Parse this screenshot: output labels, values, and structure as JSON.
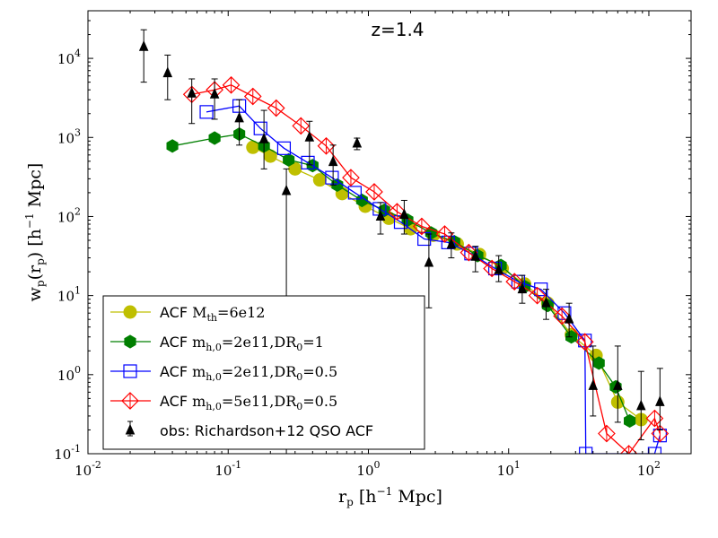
{
  "chart_data": {
    "type": "scatter",
    "title": "z=1.4",
    "xlabel": "r_p [h^-1 Mpc]",
    "ylabel": "w_p(r_p) [h^-1 Mpc]",
    "xscale": "log",
    "yscale": "log",
    "xlim": [
      0.01,
      200
    ],
    "ylim": [
      0.1,
      40000
    ],
    "x_ticks": [
      {
        "value": 0.01,
        "base": "10",
        "exp": "-2"
      },
      {
        "value": 0.1,
        "base": "10",
        "exp": "-1"
      },
      {
        "value": 1,
        "base": "10",
        "exp": "0"
      },
      {
        "value": 10,
        "base": "10",
        "exp": "1"
      },
      {
        "value": 100,
        "base": "10",
        "exp": "2"
      }
    ],
    "y_ticks": [
      {
        "value": 0.1,
        "base": "10",
        "exp": "-1"
      },
      {
        "value": 1,
        "base": "10",
        "exp": "0"
      },
      {
        "value": 10,
        "base": "10",
        "exp": "1"
      },
      {
        "value": 100,
        "base": "10",
        "exp": "2"
      },
      {
        "value": 1000,
        "base": "10",
        "exp": "3"
      },
      {
        "value": 10000,
        "base": "10",
        "exp": "4"
      }
    ],
    "legend_position": "lower-left",
    "series": [
      {
        "name": "ACF M_th=6e12",
        "legend": {
          "prefix": "ACF ",
          "math": "M",
          "sub": "th",
          "rest": "=6e12"
        },
        "color": "#bfbf00",
        "marker": "circle",
        "x": [
          0.15,
          0.2,
          0.3,
          0.45,
          0.65,
          0.95,
          1.4,
          2.0,
          2.9,
          4.3,
          6.2,
          9.0,
          13,
          19,
          28,
          42,
          60,
          88
        ],
        "y": [
          750,
          580,
          400,
          290,
          195,
          135,
          95,
          70,
          58,
          45,
          33,
          22,
          14,
          8,
          3.2,
          1.75,
          0.45,
          0.27
        ]
      },
      {
        "name": "ACF m_h,0=2e11,DR_0=1",
        "legend": {
          "prefix": "ACF ",
          "math": "m",
          "sub": "h,0",
          "rest": "=2e11,DR",
          "sub2": "0",
          "rest2": "=1"
        },
        "color": "#007f00",
        "marker": "hexagon",
        "x": [
          0.04,
          0.08,
          0.12,
          0.18,
          0.27,
          0.4,
          0.6,
          0.9,
          1.3,
          1.9,
          2.8,
          4.1,
          6.0,
          8.8,
          13,
          19,
          28,
          44,
          58,
          73
        ],
        "y": [
          780,
          980,
          1100,
          780,
          520,
          440,
          250,
          160,
          120,
          90,
          62,
          48,
          32,
          24,
          13,
          7.5,
          3.0,
          1.4,
          0.7,
          0.26
        ]
      },
      {
        "name": "ACF m_h,0=2e11,DR_0=0.5",
        "legend": {
          "prefix": "ACF ",
          "math": "m",
          "sub": "h,0",
          "rest": "=2e11,DR",
          "sub2": "0",
          "rest2": "=0.5"
        },
        "color": "#0000ff",
        "marker": "square",
        "x": [
          0.07,
          0.12,
          0.17,
          0.25,
          0.37,
          0.55,
          0.8,
          1.2,
          1.7,
          2.5,
          3.7,
          5.4,
          8.0,
          11.7,
          17,
          25,
          35,
          35.5,
          110,
          120
        ],
        "y": [
          2100,
          2500,
          1300,
          730,
          480,
          310,
          200,
          125,
          85,
          52,
          47,
          34,
          22,
          15,
          12,
          6,
          2.7,
          0.1,
          0.1,
          0.17
        ]
      },
      {
        "name": "ACF m_h,0=5e11,DR_0=0.5",
        "legend": {
          "prefix": "ACF ",
          "math": "m",
          "sub": "h,0",
          "rest": "=5e11,DR",
          "sub2": "0",
          "rest2": "=0.5"
        },
        "color": "#ff0000",
        "marker": "diamond-plus",
        "x": [
          0.055,
          0.08,
          0.105,
          0.15,
          0.22,
          0.33,
          0.5,
          0.75,
          1.1,
          1.6,
          2.4,
          3.5,
          5.2,
          7.6,
          11,
          16,
          24,
          35,
          50,
          72,
          110,
          120
        ],
        "y": [
          3500,
          4000,
          4600,
          3300,
          2350,
          1400,
          780,
          310,
          205,
          115,
          75,
          60,
          35,
          22,
          15,
          10,
          5.5,
          2.6,
          0.18,
          0.1,
          0.28,
          0.18
        ]
      },
      {
        "name": "obs: Richardson+12 QSO ACF",
        "legend": {
          "prefix": "obs: Richardson+12 QSO ACF"
        },
        "color": "#000000",
        "marker": "triangle",
        "x": [
          0.025,
          0.037,
          0.055,
          0.08,
          0.12,
          0.18,
          0.26,
          0.38,
          0.56,
          0.83,
          1.22,
          1.8,
          2.7,
          3.9,
          5.8,
          8.5,
          12.5,
          18.5,
          27,
          40,
          60,
          88,
          120
        ],
        "y": [
          14000,
          6500,
          3600,
          3500,
          1750,
          950,
          210,
          1000,
          490,
          840,
          100,
          105,
          26,
          44,
          31,
          21,
          12,
          8,
          5,
          0.72,
          0.72,
          0.4,
          0.45
        ],
        "yerr_low": [
          5000,
          3000,
          1500,
          1700,
          800,
          400,
          0.1,
          450,
          250,
          700,
          60,
          60,
          7,
          30,
          20,
          15,
          8,
          5,
          3,
          0.3,
          0.25,
          0.15,
          0.2
        ],
        "yerr_high": [
          23000,
          11000,
          5500,
          5500,
          3000,
          2200,
          400,
          1600,
          800,
          980,
          150,
          160,
          60,
          62,
          42,
          32,
          18,
          12,
          8,
          2.3,
          2.3,
          1.1,
          1.2
        ]
      }
    ]
  }
}
